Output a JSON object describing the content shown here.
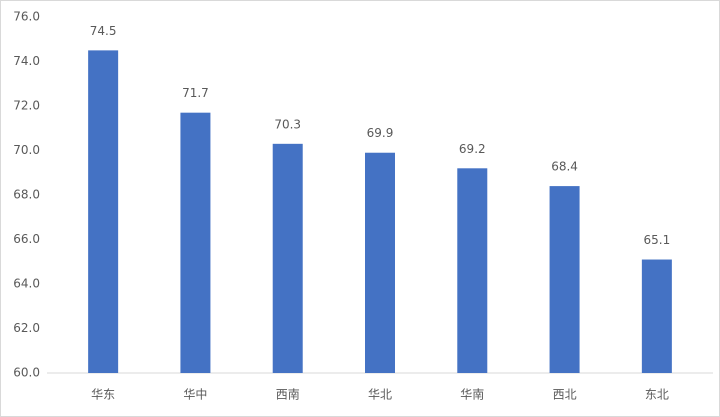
{
  "chart_data": {
    "type": "bar",
    "categories": [
      "华东",
      "华中",
      "西南",
      "华北",
      "华南",
      "西北",
      "东北"
    ],
    "values": [
      74.5,
      71.7,
      70.3,
      69.9,
      69.2,
      68.4,
      65.1
    ],
    "color": "#4472c4",
    "ylim": [
      60,
      76
    ],
    "yticks": [
      {
        "value": 60,
        "label": "60.0"
      },
      {
        "value": 62,
        "label": "62.0"
      },
      {
        "value": 64,
        "label": "64.0"
      },
      {
        "value": 66,
        "label": "66.0"
      },
      {
        "value": 68,
        "label": "68.0"
      },
      {
        "value": 70,
        "label": "70.0"
      },
      {
        "value": 72,
        "label": "72.0"
      },
      {
        "value": 74,
        "label": "74.0"
      },
      {
        "value": 76,
        "label": "76.0"
      }
    ],
    "grid": false
  }
}
